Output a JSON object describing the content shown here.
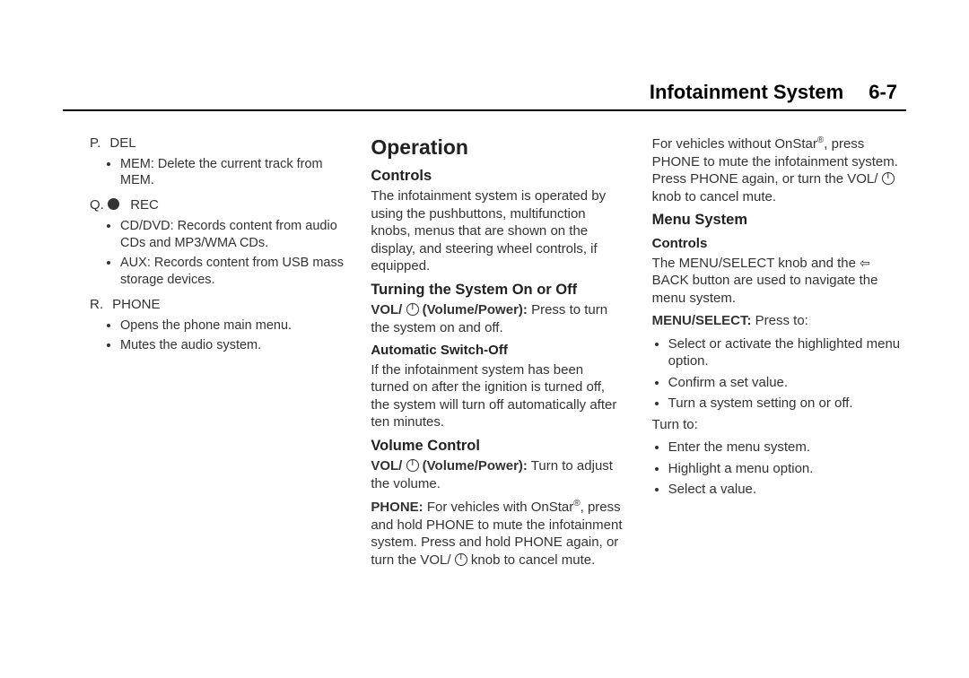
{
  "header": {
    "title": "Infotainment System",
    "page": "6-7"
  },
  "col1": {
    "items": [
      {
        "letter": "P.",
        "label": "DEL",
        "bullets": [
          "MEM: Delete the current track from MEM."
        ]
      },
      {
        "letter": "Q.",
        "icon": "dot",
        "label": "REC",
        "bullets": [
          "CD/DVD: Records content from audio CDs and MP3/WMA CDs.",
          "AUX: Records content from USB mass storage devices."
        ]
      },
      {
        "letter": "R.",
        "label": "PHONE",
        "bullets": [
          "Opens the phone main menu.",
          "Mutes the audio system."
        ]
      }
    ]
  },
  "col2": {
    "operation_title": "Operation",
    "controls_title": "Controls",
    "controls_body": "The infotainment system is operated by using the pushbuttons, multifunction knobs, menus that are shown on the display, and steering wheel controls, if equipped.",
    "turning_title": "Turning the System On or Off",
    "vol_label": "VOL/ ",
    "vol_label2": " (Volume/Power):",
    "vol_body": "  Press to turn the system on and off.",
    "auto_off_title": "Automatic Switch-Off",
    "auto_off_body": "If the infotainment system has been turned on after the ignition is turned off, the system will turn off automatically after ten minutes.",
    "volume_control_title": "Volume Control",
    "vol2_body": "  Turn to adjust the volume.",
    "phone_label": "PHONE:",
    "phone_body1": "  For vehicles with OnStar",
    "phone_body2": ", press and hold PHONE to mute the infotainment system. Press and hold PHONE again, or turn the VOL/ ",
    "phone_body3": " knob to cancel mute."
  },
  "col3": {
    "top1": "For vehicles without OnStar",
    "top2": ", press PHONE to mute the infotainment system. Press PHONE again, or turn the VOL/ ",
    "top3": " knob to cancel mute.",
    "menu_system_title": "Menu System",
    "controls_title": "Controls",
    "controls_body1": "The MENU/SELECT knob and the ",
    "controls_body2": " BACK button are used to navigate the menu system.",
    "menu_select_label": "MENU/SELECT:",
    "menu_select_body": "  Press to:",
    "press_list": [
      "Select or activate the highlighted menu option.",
      "Confirm a set value.",
      "Turn a system setting on or off."
    ],
    "turn_to": "Turn to:",
    "turn_list": [
      "Enter the menu system.",
      "Highlight a menu option.",
      "Select a value."
    ]
  }
}
